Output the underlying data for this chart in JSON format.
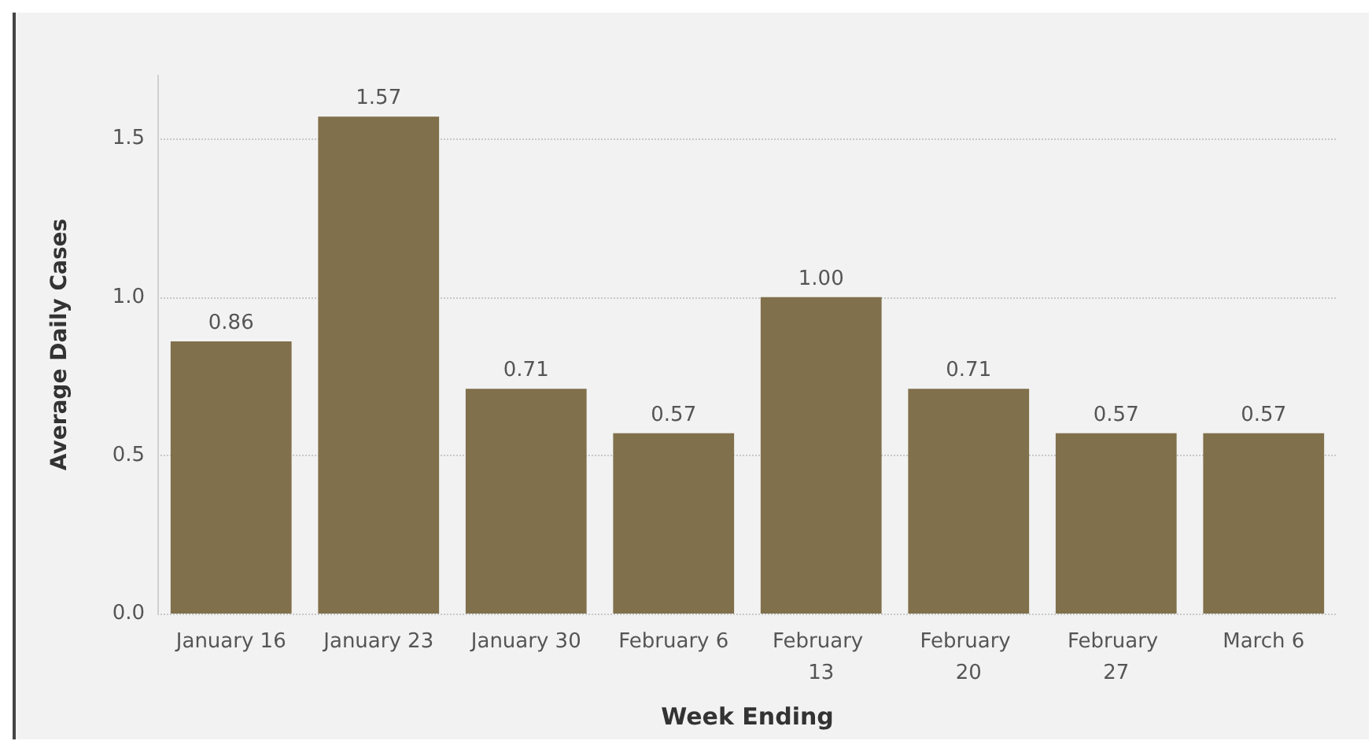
{
  "chart_data": {
    "type": "bar",
    "xlabel": "Week Ending",
    "ylabel": "Average Daily Cases",
    "categories": [
      "January 16",
      "January 23",
      "January 30",
      "February 6",
      "February 13",
      "February 20",
      "February 27",
      "March 6"
    ],
    "values": [
      0.86,
      1.57,
      0.71,
      0.57,
      1.0,
      0.71,
      0.57,
      0.57
    ],
    "value_labels": [
      "0.86",
      "1.57",
      "0.71",
      "0.57",
      "1.00",
      "0.71",
      "0.57",
      "0.57"
    ],
    "color": "#80704b",
    "ylim": [
      0,
      1.7
    ],
    "yticks": [
      {
        "value": 0,
        "label": "0.0"
      },
      {
        "value": 0.5,
        "label": "0.5"
      },
      {
        "value": 1,
        "label": "1.0"
      },
      {
        "value": 1.5,
        "label": "1.5"
      }
    ],
    "grid": "y"
  }
}
